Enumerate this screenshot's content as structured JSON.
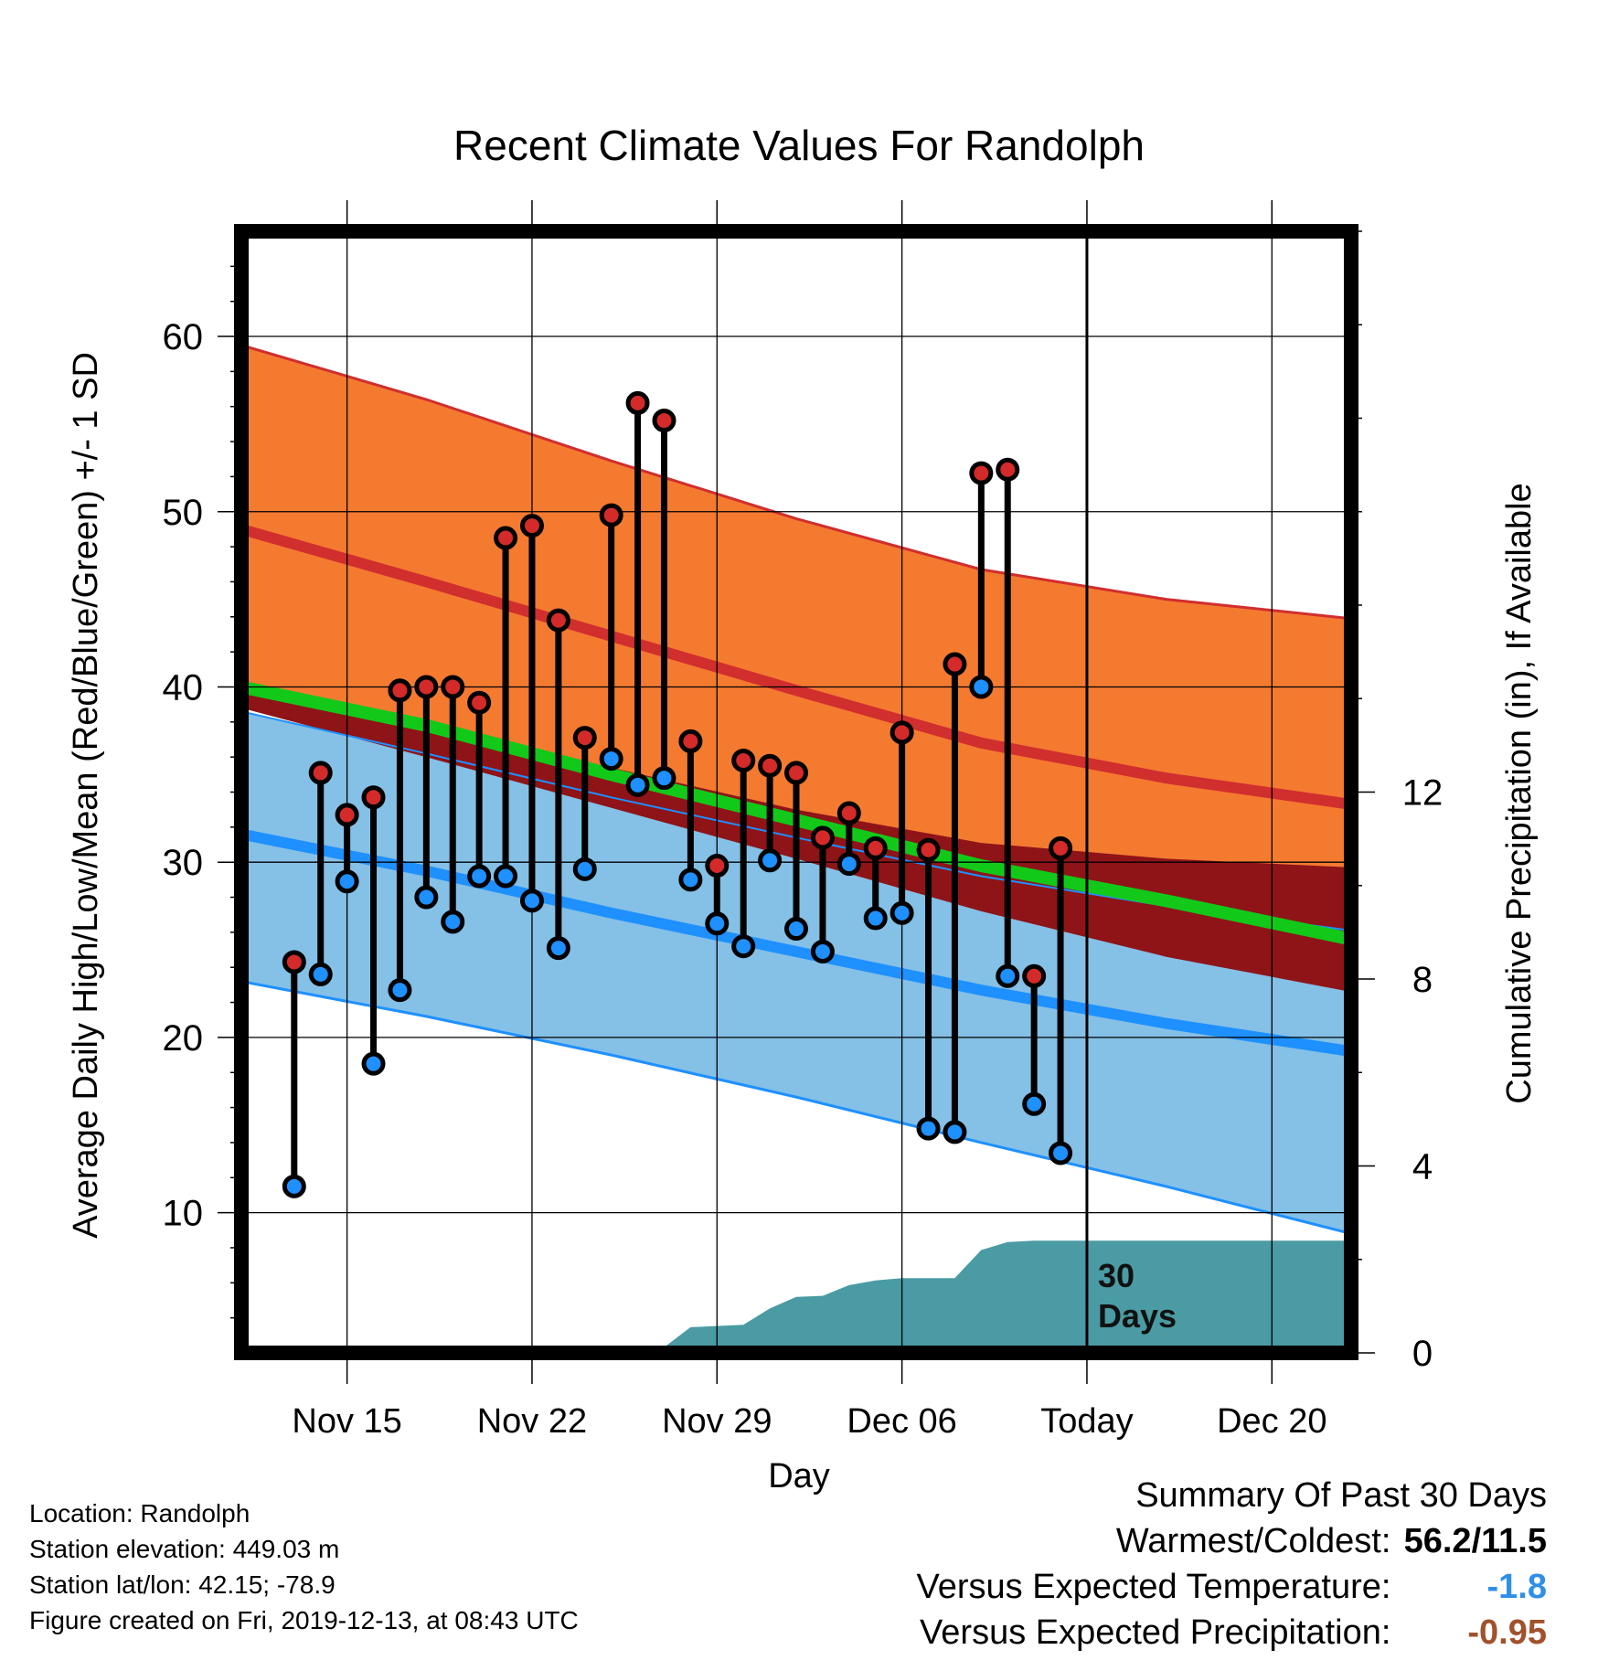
{
  "chart_data": {
    "type": "line",
    "title": "Recent Climate Values For Randolph",
    "xlabel": "Day",
    "ylabel_left": "Average Daily High/Low/Mean (Red/Blue/Green) +/- 1 SD",
    "ylabel_right": "Cumulative Precipitation (in), If Available",
    "ylim_left": [
      2,
      66
    ],
    "ylim_right": [
      0,
      24
    ],
    "xlim": [
      "2019-11-11",
      "2019-12-23"
    ],
    "x_tick_labels": [
      "Nov 15",
      "Nov 22",
      "Nov 29",
      "Dec 06",
      "Today",
      "Dec 20"
    ],
    "x_tick_dates": [
      "2019-11-15",
      "2019-11-22",
      "2019-11-29",
      "2019-12-06",
      "2019-12-13",
      "2019-12-20"
    ],
    "y_ticks_left": [
      10,
      20,
      30,
      40,
      50,
      60
    ],
    "y_ticks_right": [
      0,
      4,
      8,
      12
    ],
    "grid": true,
    "today_marker": {
      "date": "2019-12-13",
      "label_line1": "30",
      "label_line2": "Days"
    },
    "dates": [
      "2019-11-13",
      "2019-11-14",
      "2019-11-15",
      "2019-11-16",
      "2019-11-17",
      "2019-11-18",
      "2019-11-19",
      "2019-11-20",
      "2019-11-21",
      "2019-11-22",
      "2019-11-23",
      "2019-11-24",
      "2019-11-25",
      "2019-11-26",
      "2019-11-27",
      "2019-11-28",
      "2019-11-29",
      "2019-11-30",
      "2019-12-01",
      "2019-12-02",
      "2019-12-03",
      "2019-12-04",
      "2019-12-05",
      "2019-12-06",
      "2019-12-07",
      "2019-12-08",
      "2019-12-09",
      "2019-12-10",
      "2019-12-11",
      "2019-12-12"
    ],
    "series": [
      {
        "name": "High",
        "color": "#d42a2a",
        "values": [
          24.3,
          35.1,
          32.7,
          33.7,
          39.8,
          40.0,
          40.0,
          39.1,
          48.5,
          49.2,
          43.8,
          37.1,
          49.8,
          56.2,
          55.2,
          36.9,
          29.8,
          35.8,
          35.5,
          35.1,
          31.4,
          32.8,
          30.8,
          37.4,
          30.7,
          41.3,
          52.2,
          52.4,
          23.5,
          30.8
        ]
      },
      {
        "name": "Low",
        "color": "#1e90ff",
        "values": [
          11.5,
          23.6,
          28.9,
          18.5,
          22.7,
          28.0,
          26.6,
          29.2,
          29.2,
          27.8,
          25.1,
          29.6,
          35.9,
          34.4,
          34.8,
          29.0,
          26.5,
          25.2,
          30.1,
          26.2,
          24.9,
          29.9,
          26.8,
          27.1,
          14.8,
          14.6,
          40.0,
          23.5,
          16.2,
          13.4
        ]
      }
    ],
    "normals": {
      "dates": [
        "2019-11-11",
        "2019-11-18",
        "2019-11-25",
        "2019-12-02",
        "2019-12-09",
        "2019-12-16",
        "2019-12-23"
      ],
      "high_mean": [
        49.0,
        46.0,
        42.9,
        39.8,
        36.8,
        34.8,
        33.3
      ],
      "high_upper": [
        59.5,
        56.4,
        52.9,
        49.6,
        46.7,
        45.0,
        43.9
      ],
      "low_mean": [
        31.6,
        29.5,
        27.1,
        24.9,
        22.7,
        20.8,
        19.2
      ],
      "low_upper": [
        38.6,
        36.2,
        33.7,
        31.4,
        29.2,
        27.5,
        26.1
      ],
      "low_lower": [
        23.2,
        21.2,
        19.0,
        16.6,
        14.0,
        11.5,
        8.8
      ],
      "mean_mean": [
        40.0,
        37.8,
        35.0,
        32.4,
        29.8,
        27.8,
        25.6
      ],
      "maroon_upper": [
        40.0,
        37.8,
        35.4,
        33.0,
        31.1,
        30.2,
        29.7
      ],
      "maroon_lower": [
        38.8,
        36.0,
        33.1,
        30.2,
        27.2,
        24.6,
        22.6
      ]
    },
    "precipitation": {
      "dates": [
        "2019-11-11",
        "2019-11-20",
        "2019-11-21",
        "2019-11-27",
        "2019-11-28",
        "2019-11-30",
        "2019-12-01",
        "2019-12-02",
        "2019-12-03",
        "2019-12-04",
        "2019-12-05",
        "2019-12-06",
        "2019-12-07",
        "2019-12-08",
        "2019-12-09",
        "2019-12-10",
        "2019-12-11",
        "2019-12-23"
      ],
      "values": [
        0,
        0,
        0.12,
        0.12,
        0.55,
        0.6,
        0.95,
        1.2,
        1.22,
        1.45,
        1.55,
        1.6,
        1.6,
        1.6,
        2.2,
        2.37,
        2.4,
        2.4
      ]
    }
  },
  "footer": {
    "location": "Location: Randolph",
    "elevation": "Station elevation: 449.03 m",
    "latlon": "Station lat/lon: 42.15; -78.9",
    "created": "Figure created on Fri, 2019-12-13, at 08:43 UTC"
  },
  "summary": {
    "heading": "Summary Of Past 30 Days",
    "warmest_coldest_label": "Warmest/Coldest:",
    "warmest_coldest_value": "56.2/11.5",
    "temp_label": "Versus Expected Temperature:",
    "temp_value": "-1.8",
    "temp_color": "#2f8fe8",
    "precip_label": "Versus Expected Precipitation:",
    "precip_value": "-0.95",
    "precip_color": "#a0522d"
  },
  "colors": {
    "high_band": "#f47a30",
    "high_line": "#d12e2e",
    "low_band": "#85c0e6",
    "low_line": "#1e90ff",
    "mean_line": "#12c91a",
    "maroon_band": "#8e1418",
    "precip_fill": "#4a9ba3"
  }
}
